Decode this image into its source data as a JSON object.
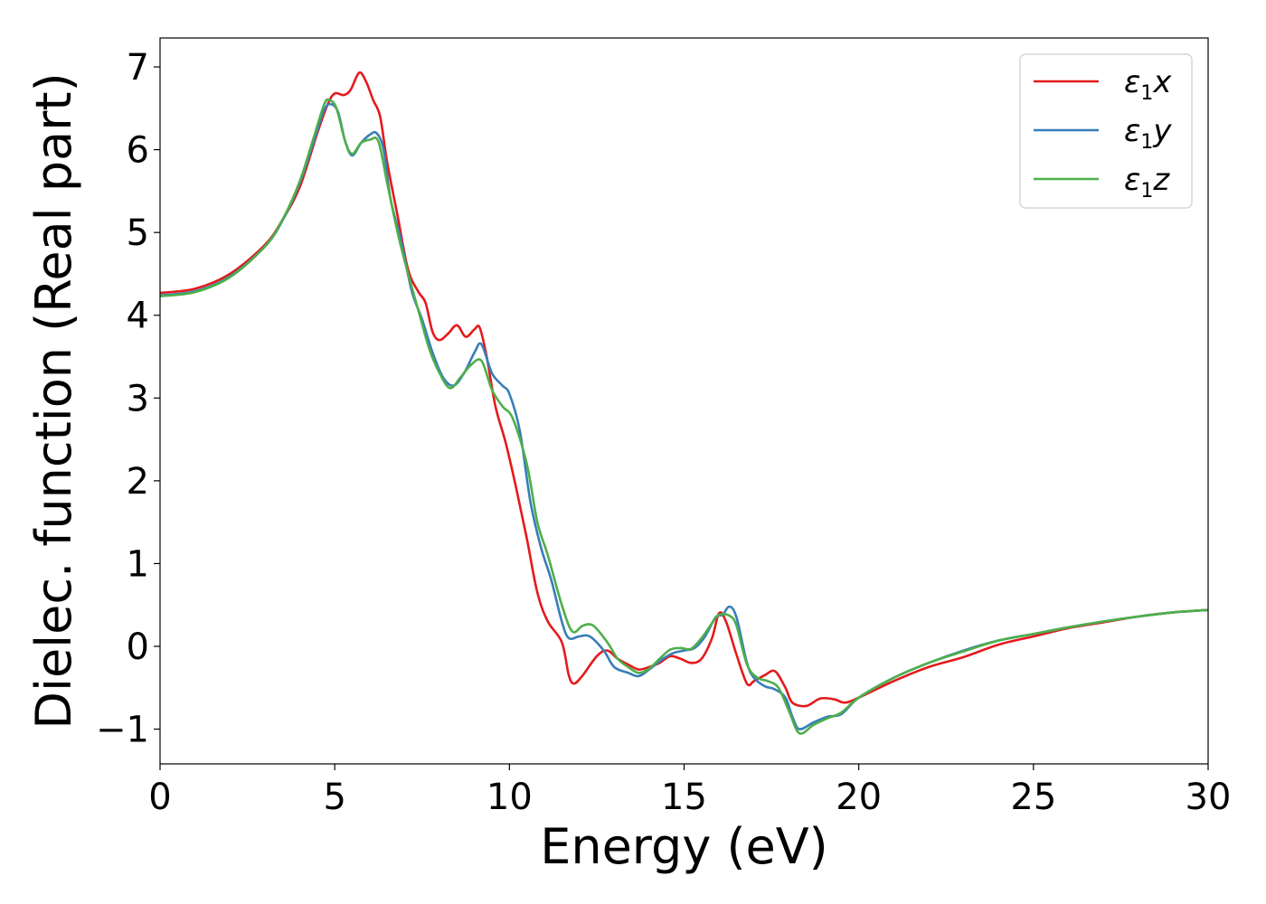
{
  "chart_data": {
    "type": "line",
    "xlabel": "Energy (eV)",
    "ylabel": "Dielec. function (Real part)",
    "xlim": [
      0,
      30
    ],
    "ylim": [
      -1.42,
      7.35
    ],
    "xticks": [
      0,
      5,
      10,
      15,
      20,
      25,
      30
    ],
    "yticks": [
      -1,
      0,
      1,
      2,
      3,
      4,
      5,
      6,
      7
    ],
    "grid": false,
    "legend_position": "top-right",
    "series": [
      {
        "name": "ε1x",
        "label": {
          "base": "ε",
          "sub": "1",
          "axis": "x"
        },
        "color": "#e41a1c",
        "points": [
          [
            0,
            4.27
          ],
          [
            1,
            4.32
          ],
          [
            2,
            4.5
          ],
          [
            3,
            4.85
          ],
          [
            3.5,
            5.15
          ],
          [
            4,
            5.55
          ],
          [
            4.5,
            6.2
          ],
          [
            4.8,
            6.55
          ],
          [
            5,
            6.68
          ],
          [
            5.25,
            6.66
          ],
          [
            5.45,
            6.72
          ],
          [
            5.7,
            6.93
          ],
          [
            5.9,
            6.82
          ],
          [
            6.1,
            6.6
          ],
          [
            6.3,
            6.4
          ],
          [
            6.5,
            5.85
          ],
          [
            6.8,
            5.2
          ],
          [
            7.1,
            4.55
          ],
          [
            7.4,
            4.28
          ],
          [
            7.6,
            4.15
          ],
          [
            7.8,
            3.8
          ],
          [
            8.0,
            3.7
          ],
          [
            8.25,
            3.78
          ],
          [
            8.5,
            3.88
          ],
          [
            8.75,
            3.74
          ],
          [
            9.0,
            3.83
          ],
          [
            9.15,
            3.85
          ],
          [
            9.35,
            3.5
          ],
          [
            9.6,
            2.9
          ],
          [
            9.9,
            2.45
          ],
          [
            10.2,
            1.9
          ],
          [
            10.5,
            1.3
          ],
          [
            10.8,
            0.65
          ],
          [
            11.1,
            0.3
          ],
          [
            11.5,
            0.05
          ],
          [
            11.7,
            -0.35
          ],
          [
            11.85,
            -0.45
          ],
          [
            12.1,
            -0.35
          ],
          [
            12.5,
            -0.12
          ],
          [
            12.8,
            -0.05
          ],
          [
            13.1,
            -0.15
          ],
          [
            13.4,
            -0.22
          ],
          [
            13.7,
            -0.28
          ],
          [
            14.0,
            -0.25
          ],
          [
            14.3,
            -0.2
          ],
          [
            14.6,
            -0.12
          ],
          [
            14.9,
            -0.15
          ],
          [
            15.2,
            -0.2
          ],
          [
            15.5,
            -0.15
          ],
          [
            15.8,
            0.1
          ],
          [
            16.0,
            0.4
          ],
          [
            16.2,
            0.3
          ],
          [
            16.5,
            -0.1
          ],
          [
            16.8,
            -0.45
          ],
          [
            17.0,
            -0.42
          ],
          [
            17.3,
            -0.35
          ],
          [
            17.6,
            -0.3
          ],
          [
            17.9,
            -0.5
          ],
          [
            18.1,
            -0.68
          ],
          [
            18.5,
            -0.72
          ],
          [
            18.9,
            -0.63
          ],
          [
            19.3,
            -0.64
          ],
          [
            19.6,
            -0.68
          ],
          [
            20,
            -0.62
          ],
          [
            21,
            -0.42
          ],
          [
            22,
            -0.25
          ],
          [
            23,
            -0.13
          ],
          [
            24,
            0.02
          ],
          [
            25,
            0.12
          ],
          [
            26,
            0.22
          ],
          [
            27,
            0.29
          ],
          [
            28,
            0.36
          ],
          [
            29,
            0.41
          ],
          [
            30,
            0.44
          ]
        ]
      },
      {
        "name": "ε1y",
        "label": {
          "base": "ε",
          "sub": "1",
          "axis": "y"
        },
        "color": "#377eb8",
        "points": [
          [
            0,
            4.24
          ],
          [
            1,
            4.29
          ],
          [
            2,
            4.47
          ],
          [
            3,
            4.83
          ],
          [
            3.5,
            5.14
          ],
          [
            4,
            5.6
          ],
          [
            4.4,
            6.1
          ],
          [
            4.7,
            6.48
          ],
          [
            4.9,
            6.55
          ],
          [
            5.1,
            6.45
          ],
          [
            5.3,
            6.1
          ],
          [
            5.5,
            5.93
          ],
          [
            5.75,
            6.08
          ],
          [
            6.0,
            6.18
          ],
          [
            6.2,
            6.2
          ],
          [
            6.4,
            6.0
          ],
          [
            6.6,
            5.4
          ],
          [
            6.9,
            4.9
          ],
          [
            7.2,
            4.3
          ],
          [
            7.5,
            3.95
          ],
          [
            7.8,
            3.55
          ],
          [
            8.1,
            3.25
          ],
          [
            8.4,
            3.15
          ],
          [
            8.7,
            3.3
          ],
          [
            9.0,
            3.55
          ],
          [
            9.2,
            3.65
          ],
          [
            9.5,
            3.3
          ],
          [
            9.8,
            3.15
          ],
          [
            10.0,
            3.05
          ],
          [
            10.3,
            2.6
          ],
          [
            10.6,
            1.75
          ],
          [
            10.9,
            1.2
          ],
          [
            11.2,
            0.8
          ],
          [
            11.5,
            0.3
          ],
          [
            11.7,
            0.1
          ],
          [
            12.0,
            0.12
          ],
          [
            12.3,
            0.12
          ],
          [
            12.7,
            -0.05
          ],
          [
            13.0,
            -0.25
          ],
          [
            13.4,
            -0.32
          ],
          [
            13.7,
            -0.36
          ],
          [
            14.0,
            -0.28
          ],
          [
            14.4,
            -0.15
          ],
          [
            14.7,
            -0.08
          ],
          [
            15.0,
            -0.05
          ],
          [
            15.3,
            -0.02
          ],
          [
            15.6,
            0.12
          ],
          [
            15.9,
            0.35
          ],
          [
            16.1,
            0.38
          ],
          [
            16.3,
            0.48
          ],
          [
            16.5,
            0.35
          ],
          [
            16.8,
            -0.2
          ],
          [
            17.0,
            -0.38
          ],
          [
            17.3,
            -0.48
          ],
          [
            17.6,
            -0.52
          ],
          [
            17.9,
            -0.62
          ],
          [
            18.1,
            -0.85
          ],
          [
            18.3,
            -1.0
          ],
          [
            18.7,
            -0.92
          ],
          [
            19.1,
            -0.85
          ],
          [
            19.5,
            -0.82
          ],
          [
            20,
            -0.62
          ],
          [
            21,
            -0.38
          ],
          [
            22,
            -0.2
          ],
          [
            23,
            -0.05
          ],
          [
            24,
            0.07
          ],
          [
            25,
            0.15
          ],
          [
            26,
            0.23
          ],
          [
            27,
            0.3
          ],
          [
            28,
            0.36
          ],
          [
            29,
            0.41
          ],
          [
            30,
            0.44
          ]
        ]
      },
      {
        "name": "ε1z",
        "label": {
          "base": "ε",
          "sub": "1",
          "axis": "z"
        },
        "color": "#4daf4a",
        "points": [
          [
            0,
            4.23
          ],
          [
            1,
            4.28
          ],
          [
            2,
            4.46
          ],
          [
            3,
            4.83
          ],
          [
            3.5,
            5.15
          ],
          [
            4,
            5.62
          ],
          [
            4.4,
            6.15
          ],
          [
            4.7,
            6.55
          ],
          [
            4.85,
            6.6
          ],
          [
            5.05,
            6.5
          ],
          [
            5.3,
            6.1
          ],
          [
            5.5,
            5.95
          ],
          [
            5.75,
            6.08
          ],
          [
            6.0,
            6.12
          ],
          [
            6.25,
            6.1
          ],
          [
            6.5,
            5.6
          ],
          [
            6.8,
            5.0
          ],
          [
            7.1,
            4.5
          ],
          [
            7.4,
            4.05
          ],
          [
            7.7,
            3.6
          ],
          [
            8.0,
            3.3
          ],
          [
            8.3,
            3.12
          ],
          [
            8.6,
            3.25
          ],
          [
            8.9,
            3.4
          ],
          [
            9.2,
            3.45
          ],
          [
            9.5,
            3.1
          ],
          [
            9.8,
            2.9
          ],
          [
            10.1,
            2.75
          ],
          [
            10.5,
            2.2
          ],
          [
            10.8,
            1.5
          ],
          [
            11.1,
            1.1
          ],
          [
            11.5,
            0.5
          ],
          [
            11.8,
            0.18
          ],
          [
            12.1,
            0.25
          ],
          [
            12.4,
            0.25
          ],
          [
            12.8,
            0.05
          ],
          [
            13.1,
            -0.15
          ],
          [
            13.4,
            -0.25
          ],
          [
            13.7,
            -0.32
          ],
          [
            14.0,
            -0.27
          ],
          [
            14.3,
            -0.15
          ],
          [
            14.6,
            -0.04
          ],
          [
            14.9,
            -0.02
          ],
          [
            15.2,
            -0.03
          ],
          [
            15.5,
            0.1
          ],
          [
            15.8,
            0.28
          ],
          [
            16.0,
            0.38
          ],
          [
            16.3,
            0.37
          ],
          [
            16.5,
            0.25
          ],
          [
            16.8,
            -0.22
          ],
          [
            17.1,
            -0.38
          ],
          [
            17.4,
            -0.42
          ],
          [
            17.7,
            -0.5
          ],
          [
            18.0,
            -0.78
          ],
          [
            18.3,
            -1.05
          ],
          [
            18.7,
            -0.95
          ],
          [
            19.1,
            -0.87
          ],
          [
            19.5,
            -0.8
          ],
          [
            20,
            -0.62
          ],
          [
            21,
            -0.38
          ],
          [
            22,
            -0.2
          ],
          [
            23,
            -0.06
          ],
          [
            24,
            0.07
          ],
          [
            25,
            0.15
          ],
          [
            26,
            0.23
          ],
          [
            27,
            0.3
          ],
          [
            28,
            0.36
          ],
          [
            29,
            0.41
          ],
          [
            30,
            0.44
          ]
        ]
      }
    ]
  }
}
